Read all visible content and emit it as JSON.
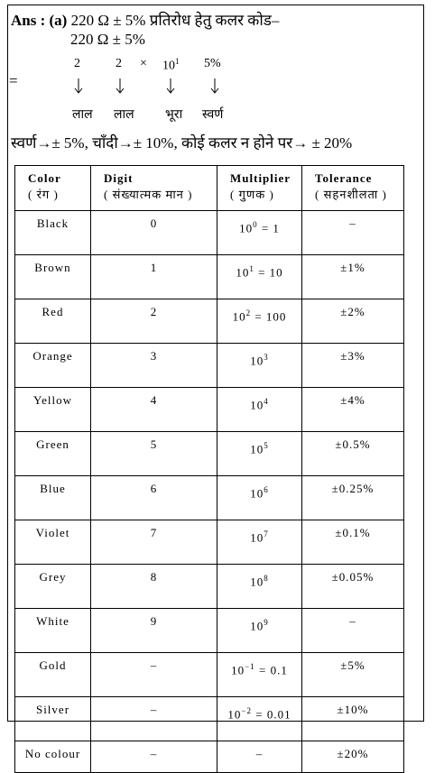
{
  "answer_label": "Ans : (a)",
  "line1": "220 Ω  ± 5% प्रतिरोध हेतु कलर कोड–",
  "line2": "220 Ω  ± 5%",
  "equals": "=",
  "digits": [
    {
      "text": "2"
    },
    {
      "text": "2"
    },
    {
      "text": "×"
    },
    {
      "text": "10",
      "sup": "1"
    },
    {
      "text": "5%"
    }
  ],
  "colors": [
    "लाल",
    "लाल",
    "भूरा",
    "स्वर्ण"
  ],
  "tolerance_note": "स्वर्ण→± 5%,  चाँदी→± 10%, कोई कलर न होने पर→ ± 20%",
  "table": {
    "columns": [
      {
        "title": "Color",
        "sub": "( रंग )"
      },
      {
        "title": "Digit",
        "sub": "( संख्यात्मक मान )"
      },
      {
        "title": "Multiplier",
        "sub": "( गुणक )"
      },
      {
        "title": "Tolerance",
        "sub": "( सहनशीलता )"
      }
    ],
    "rows": [
      [
        "Black",
        "0",
        {
          "base": "10",
          "exp": "0",
          "rest": " = 1"
        },
        "–"
      ],
      [
        "Brown",
        "1",
        {
          "base": "10",
          "exp": "1",
          "rest": " = 10"
        },
        "±1%"
      ],
      [
        "Red",
        "2",
        {
          "base": "10",
          "exp": "2",
          "rest": " = 100"
        },
        "±2%"
      ],
      [
        "Orange",
        "3",
        {
          "base": "10",
          "exp": "3"
        },
        "±3%"
      ],
      [
        "Yellow",
        "4",
        {
          "base": "10",
          "exp": "4"
        },
        "±4%"
      ],
      [
        "Green",
        "5",
        {
          "base": "10",
          "exp": "5"
        },
        "±0.5%"
      ],
      [
        "Blue",
        "6",
        {
          "base": "10",
          "exp": "6"
        },
        "±0.25%"
      ],
      [
        "Violet",
        "7",
        {
          "base": "10",
          "exp": "7"
        },
        "±0.1%"
      ],
      [
        "Grey",
        "8",
        {
          "base": "10",
          "exp": "8"
        },
        "±0.05%"
      ],
      [
        "White",
        "9",
        {
          "base": "10",
          "exp": "9"
        },
        "–"
      ],
      [
        "Gold",
        "–",
        {
          "base": "10",
          "exp": "−1",
          "rest": " = 0.1"
        },
        "±5%"
      ],
      [
        "Silver",
        "–",
        {
          "base": "10",
          "exp": "−2",
          "rest": " = 0.01"
        },
        "±10%"
      ],
      [
        "No colour",
        "–",
        "–",
        "±20%"
      ]
    ]
  }
}
